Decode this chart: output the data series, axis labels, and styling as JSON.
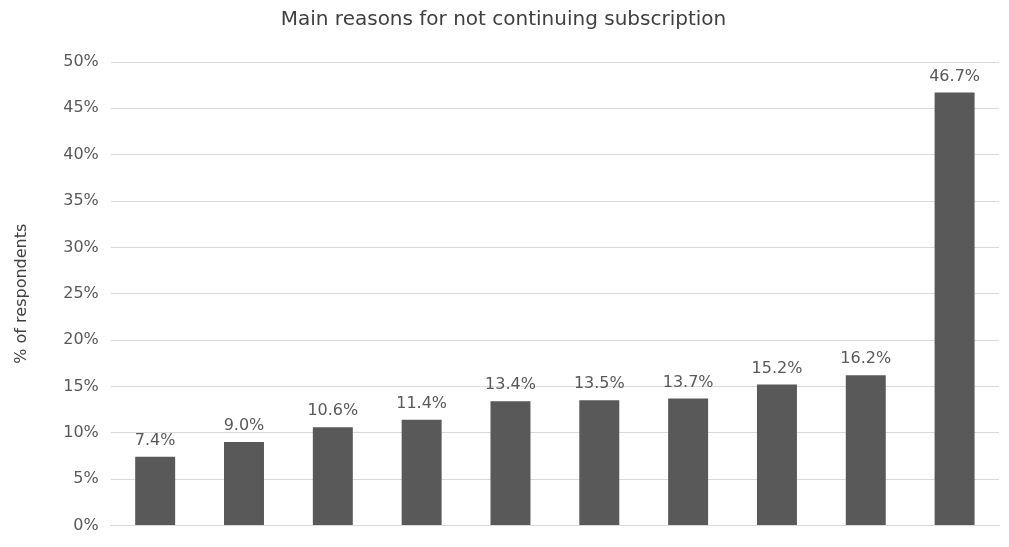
{
  "chart_data": {
    "type": "bar",
    "title": "Main reasons for not continuing subscription",
    "ylabel": "% of respondents",
    "categories": [
      null,
      null,
      null,
      null,
      null,
      null,
      null,
      null,
      null,
      null
    ],
    "values": [
      7.4,
      9.0,
      10.6,
      11.4,
      13.4,
      13.5,
      13.7,
      15.2,
      16.2,
      46.7
    ],
    "value_labels": [
      "7.4%",
      "9.0%",
      "10.6%",
      "11.4%",
      "13.4%",
      "13.5%",
      "13.7%",
      "15.2%",
      "16.2%",
      "46.7%"
    ],
    "color": "#595959",
    "ylim": [
      0,
      50
    ],
    "yticks": [
      {
        "value": 0,
        "label": "0%"
      },
      {
        "value": 5,
        "label": "5%"
      },
      {
        "value": 10,
        "label": "10%"
      },
      {
        "value": 15,
        "label": "15%"
      },
      {
        "value": 20,
        "label": "20%"
      },
      {
        "value": 25,
        "label": "25%"
      },
      {
        "value": 30,
        "label": "30%"
      },
      {
        "value": 35,
        "label": "35%"
      },
      {
        "value": 40,
        "label": "40%"
      },
      {
        "value": 45,
        "label": "45%"
      },
      {
        "value": 50,
        "label": "50%"
      }
    ],
    "grid": "y",
    "legend": false,
    "tick_labels": "y"
  }
}
